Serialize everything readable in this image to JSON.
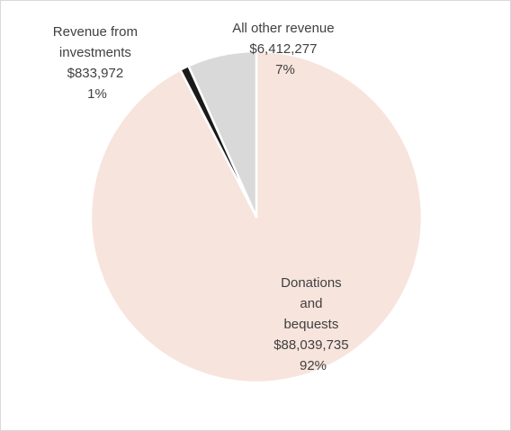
{
  "chart_data": {
    "type": "pie",
    "title": "",
    "legend": "none",
    "slices": [
      {
        "name": "Donations and bequests",
        "label_lines": [
          "Donations",
          "and",
          "bequests"
        ],
        "value_label": "$88,039,735",
        "percent_label": "92%",
        "value": 88039735,
        "color": "#f7e4dd"
      },
      {
        "name": "Revenue from investments",
        "label_lines": [
          "Revenue from",
          "investments"
        ],
        "value_label": "$833,972",
        "percent_label": "1%",
        "value": 833972,
        "color": "#1a1a1a"
      },
      {
        "name": "All other revenue",
        "label_lines": [
          "All other revenue"
        ],
        "value_label": "$6,412,277",
        "percent_label": "7%",
        "value": 6412277,
        "color": "#d9d9d9"
      }
    ]
  }
}
